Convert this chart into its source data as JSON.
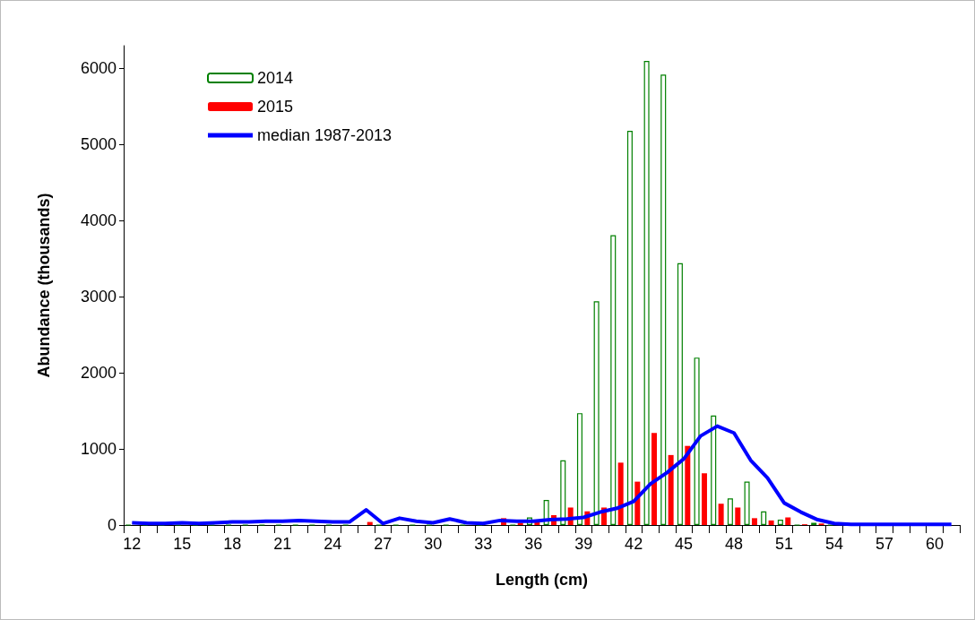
{
  "chart_data": {
    "type": "bar",
    "xlabel": "Length (cm)",
    "ylabel": "Abundance (thousands)",
    "categories": [
      "12",
      null,
      null,
      "15",
      null,
      null,
      "18",
      null,
      null,
      "21",
      null,
      null,
      "24",
      null,
      null,
      "27",
      null,
      null,
      "30",
      null,
      null,
      "33",
      null,
      null,
      "36",
      null,
      null,
      "39",
      null,
      null,
      "42",
      null,
      null,
      "45",
      null,
      null,
      "48",
      null,
      null,
      "51",
      null,
      null,
      "54",
      null,
      null,
      "57",
      null,
      null,
      "60",
      null
    ],
    "series": [
      {
        "name": "2014",
        "color": "#008000",
        "values": [
          0,
          0,
          0,
          0,
          0,
          0,
          0,
          0,
          0,
          0,
          0,
          0,
          0,
          0,
          null,
          0,
          0,
          0,
          0,
          0,
          0,
          0,
          null,
          0,
          100,
          330,
          850,
          1470,
          2940,
          3810,
          5180,
          6100,
          5920,
          3440,
          2200,
          1440,
          350,
          570,
          180,
          70,
          0,
          30,
          0,
          0,
          0,
          0,
          0,
          0,
          0,
          0
        ]
      },
      {
        "name": "2015",
        "color": "#ff0000",
        "values": [
          0,
          0,
          0,
          0,
          0,
          0,
          0,
          0,
          0,
          0,
          0,
          0,
          0,
          0,
          40,
          0,
          0,
          0,
          0,
          0,
          0,
          0,
          90,
          30,
          50,
          130,
          230,
          180,
          230,
          820,
          570,
          1210,
          920,
          1040,
          680,
          280,
          230,
          90,
          60,
          100,
          10,
          20,
          0,
          0,
          0,
          0,
          0,
          0,
          0,
          0
        ]
      },
      {
        "name": "median 1987-2013",
        "type": "line",
        "color": "#0000ff",
        "values": [
          30,
          20,
          20,
          30,
          20,
          30,
          40,
          40,
          50,
          50,
          60,
          50,
          40,
          40,
          200,
          20,
          90,
          50,
          30,
          80,
          30,
          20,
          60,
          50,
          50,
          70,
          80,
          100,
          170,
          220,
          310,
          540,
          690,
          870,
          1170,
          1300,
          1210,
          850,
          620,
          290,
          170,
          70,
          20,
          10,
          10,
          10,
          10,
          10,
          10,
          10
        ]
      }
    ],
    "ylim": [
      0,
      6300
    ],
    "yticks": [
      0,
      1000,
      2000,
      3000,
      4000,
      5000,
      6000
    ],
    "grid": false,
    "legend": "top left",
    "marker": "none",
    "line_style": "solid"
  }
}
